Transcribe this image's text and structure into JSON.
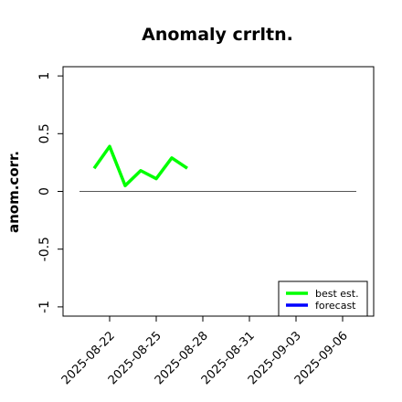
{
  "chart_data": {
    "type": "line",
    "title": "Anomaly crrltn.",
    "y_label": "anom.corr.",
    "x": [
      "2025-08-21",
      "2025-08-22",
      "2025-08-23",
      "2025-08-24",
      "2025-08-25",
      "2025-08-26",
      "2025-08-27"
    ],
    "series": [
      {
        "name": "best est.",
        "color": "#00ff00",
        "values": [
          0.2,
          0.39,
          0.05,
          0.18,
          0.11,
          0.29,
          0.2
        ]
      },
      {
        "name": "forecast",
        "color": "#0000ff",
        "values": [
          null,
          null,
          null,
          null,
          null,
          null,
          null
        ]
      }
    ],
    "xlim": [
      "2025-08-19",
      "2025-09-08"
    ],
    "xticks": [
      "2025-08-22",
      "2025-08-25",
      "2025-08-28",
      "2025-08-31",
      "2025-09-03",
      "2025-09-06"
    ],
    "highlight_xtick_index": 2,
    "highlight_color": "#228b22",
    "ylim": [
      -1.08,
      1.08
    ],
    "yticks": [
      -1.0,
      -0.5,
      0.0,
      0.5,
      1.0
    ],
    "reference_line": 0,
    "legend": "bottomright"
  }
}
